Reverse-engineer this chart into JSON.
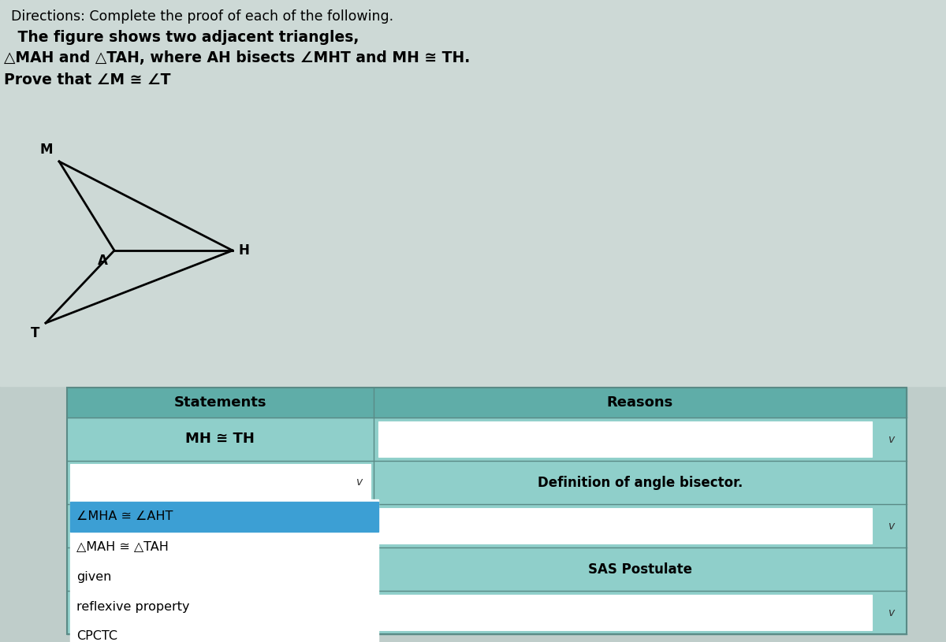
{
  "title_line1": "Directions: Complete the proof of each of the following.",
  "title_line2": " The figure shows two adjacent triangles,",
  "title_line3": "△MAH and △TAH, where AH bisects ∠MHT and MH ≅ TH.",
  "title_line4": "Prove that ∠M ≅ ∠T",
  "bg_color": "#c8d8d4",
  "upper_bg_color": "#c8d4d0",
  "table_header_bg": "#5fada8",
  "table_row_bg": "#8fcfca",
  "dropdown_bg": "#ffffff",
  "dropdown_selected_bg": "#3c9fd4",
  "header_statements": "Statements",
  "header_reasons": "Reasons",
  "row1_stmt": "MH ≅ TH",
  "row2_reason": "Definition of angle bisector.",
  "row3_reason": "SAS Postulate",
  "dropdown_items": [
    "∠MHA ≅ ∠AHT",
    "△MAH ≅ △TAH",
    "given",
    "reflexive property",
    "CPCTC"
  ],
  "label_M": "M",
  "label_A": "A",
  "label_H": "H",
  "label_T": "T"
}
